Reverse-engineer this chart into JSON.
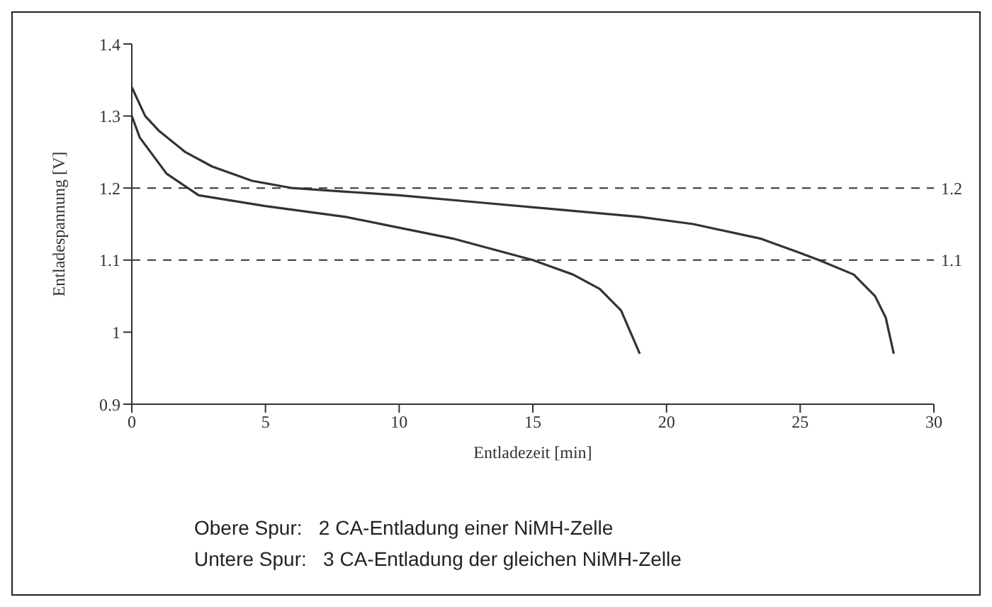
{
  "chart_data": {
    "type": "line",
    "xlabel": "Entladezeit  [min]",
    "ylabel": "Entladespannung  [V]",
    "xlim": [
      0,
      30
    ],
    "xticks": [
      0,
      5,
      10,
      15,
      20,
      25,
      30
    ],
    "ylim": [
      0.9,
      1.4
    ],
    "yticks": [
      0.9,
      1,
      1.1,
      1.2,
      1.3,
      1.4
    ],
    "grid": false,
    "legend": false,
    "marker": "none",
    "line_style": "solid",
    "series": [
      {
        "color": "#333333",
        "x": [
          0,
          0.5,
          1,
          2,
          3,
          4.5,
          6,
          8,
          10,
          13,
          16,
          19,
          21,
          23.5,
          25,
          25.7,
          27,
          27.8,
          28.2,
          28.5
        ],
        "values": [
          1.34,
          1.3,
          1.28,
          1.25,
          1.23,
          1.21,
          1.2,
          1.195,
          1.19,
          1.18,
          1.17,
          1.16,
          1.15,
          1.13,
          1.11,
          1.1,
          1.08,
          1.05,
          1.02,
          0.97
        ]
      },
      {
        "color": "#333333",
        "x": [
          0,
          0.3,
          0.7,
          1.3,
          2.5,
          5,
          8,
          10,
          12,
          13.5,
          15,
          16.5,
          17.5,
          18.3,
          19
        ],
        "values": [
          1.3,
          1.27,
          1.25,
          1.22,
          1.19,
          1.175,
          1.16,
          1.145,
          1.13,
          1.115,
          1.1,
          1.08,
          1.06,
          1.03,
          0.97
        ]
      }
    ],
    "ref_lines": [
      {
        "axis": "y",
        "value": 1.2,
        "label": "1.2",
        "line_style": "dashed"
      },
      {
        "axis": "y",
        "value": 1.1,
        "label": "1.1",
        "line_style": "dashed"
      }
    ],
    "annotations": [
      "Obere Spur:   2 CA-Entladung einer NiMH-Zelle",
      "Untere Spur:   3 CA-Entladung der gleichen NiMH-Zelle"
    ]
  }
}
